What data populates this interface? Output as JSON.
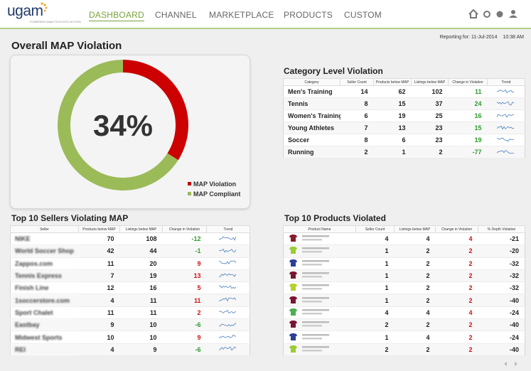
{
  "header": {
    "logo": "ugam",
    "tagline": "POWERING ANALYTICS INTO ACTION",
    "nav": [
      "DASHBOARD",
      "CHANNEL",
      "MARKETPLACE",
      "PRODUCTS",
      "CUSTOM"
    ],
    "active_nav": 0
  },
  "reporting": {
    "label": "Reporting for: 11-Jul-2014",
    "time": "10:38 AM"
  },
  "overview": {
    "title": "Overall MAP Violation",
    "center_label": "34%",
    "slices": [
      {
        "name": "MAP Violation",
        "value": 34,
        "color": "#cc0000"
      },
      {
        "name": "MAP Compliant",
        "value": 66,
        "color": "#9bbb59"
      }
    ]
  },
  "category_table": {
    "title": "Category Level Violation",
    "columns": [
      "Category",
      "Seller Count",
      "Products below MAP",
      "Listings below MAP",
      "Change in Violation",
      "Trend"
    ],
    "rows": [
      [
        "Men's Training",
        14,
        62,
        102,
        11
      ],
      [
        "Tennis",
        8,
        15,
        37,
        24
      ],
      [
        "Women's Training",
        6,
        19,
        25,
        16
      ],
      [
        "Young Athletes",
        7,
        13,
        23,
        15
      ],
      [
        "Soccer",
        8,
        6,
        23,
        19
      ],
      [
        "Running",
        2,
        1,
        2,
        -77
      ]
    ]
  },
  "sellers_table": {
    "title": "Top 10 Sellers Violating MAP",
    "columns": [
      "Seller",
      "Products below MAP",
      "Listings below MAP",
      "Change in Violation",
      "Trend"
    ],
    "rows": [
      [
        "NIKE",
        70,
        108,
        -12
      ],
      [
        "World Soccer Shop",
        42,
        44,
        -1
      ],
      [
        "Zappos.com",
        11,
        20,
        9
      ],
      [
        "Tennis Express",
        7,
        19,
        13
      ],
      [
        "Finish Line",
        12,
        16,
        5
      ],
      [
        "1soccerstore.com",
        4,
        11,
        11
      ],
      [
        "Sport Chalet",
        11,
        11,
        2
      ],
      [
        "Eastbay",
        9,
        10,
        -6
      ],
      [
        "Midwest Sports",
        10,
        10,
        9
      ],
      [
        "REI",
        4,
        9,
        -6
      ]
    ]
  },
  "products_table": {
    "title": "Top 10 Products Violated",
    "columns": [
      "Product Name",
      "Seller Count",
      "Listings below MAP",
      "Change in Violation",
      "% Depth Violation"
    ],
    "rows": [
      [
        4,
        4,
        4,
        -21
      ],
      [
        1,
        2,
        2,
        -20
      ],
      [
        1,
        2,
        2,
        -32
      ],
      [
        1,
        2,
        2,
        -32
      ],
      [
        1,
        2,
        2,
        -32
      ],
      [
        1,
        2,
        2,
        -40
      ],
      [
        4,
        4,
        4,
        -24
      ],
      [
        2,
        2,
        2,
        -40
      ],
      [
        1,
        4,
        2,
        -24
      ],
      [
        2,
        2,
        2,
        -40
      ]
    ]
  }
}
